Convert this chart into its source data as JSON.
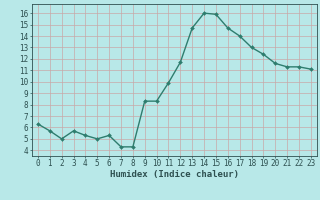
{
  "x": [
    0,
    1,
    2,
    3,
    4,
    5,
    6,
    7,
    8,
    9,
    10,
    11,
    12,
    13,
    14,
    15,
    16,
    17,
    18,
    19,
    20,
    21,
    22,
    23
  ],
  "y": [
    6.3,
    5.7,
    5.0,
    5.7,
    5.3,
    5.0,
    5.3,
    4.3,
    4.3,
    8.3,
    8.3,
    9.9,
    11.7,
    14.7,
    16.0,
    15.9,
    14.7,
    14.0,
    13.0,
    12.4,
    11.6,
    11.3,
    11.3,
    11.1
  ],
  "line_color": "#2e7d6e",
  "marker": "D",
  "marker_size": 2.0,
  "line_width": 1.0,
  "bg_color": "#b8e8e8",
  "grid_color": "#c8a8a8",
  "xlabel": "Humidex (Indice chaleur)",
  "xlabel_fontsize": 6.5,
  "xlabel_bold": true,
  "ylabel_ticks": [
    4,
    5,
    6,
    7,
    8,
    9,
    10,
    11,
    12,
    13,
    14,
    15,
    16
  ],
  "xlim": [
    -0.5,
    23.5
  ],
  "ylim": [
    3.5,
    16.8
  ],
  "tick_fontsize": 5.5,
  "tick_color": "#2e5050",
  "spine_color": "#2e5050"
}
